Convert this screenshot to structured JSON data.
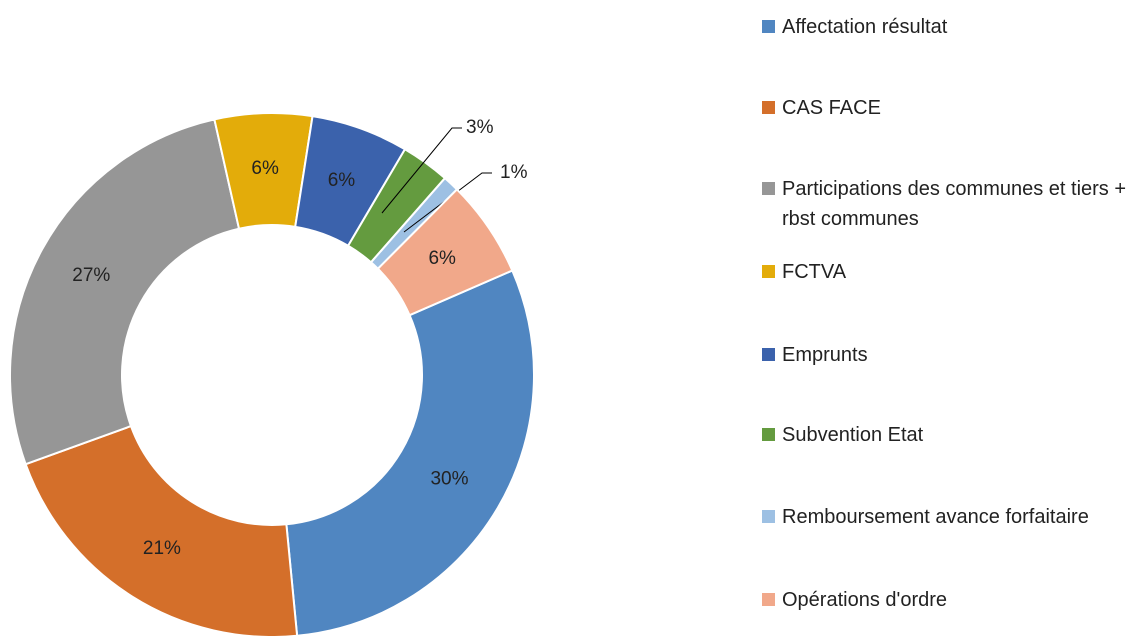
{
  "chart_data": {
    "type": "donut",
    "categories": [
      "Affectation résultat",
      "CAS FACE",
      "Participations des communes et tiers + rbst communes",
      "FCTVA",
      "Emprunts",
      "Subvention Etat",
      "Remboursement avance forfaitaire",
      "Opérations d'ordre"
    ],
    "values": [
      30,
      21,
      27,
      6,
      6,
      3,
      1,
      6
    ],
    "value_labels": [
      "30%",
      "21%",
      "27%",
      "6%",
      "6%",
      "3%",
      "1%",
      "6%"
    ],
    "colors": [
      "#5086c1",
      "#d46f2a",
      "#969696",
      "#e3ac0a",
      "#3b62ac",
      "#649b3f",
      "#9dc0e3",
      "#f1a88a"
    ],
    "legend": "right"
  }
}
